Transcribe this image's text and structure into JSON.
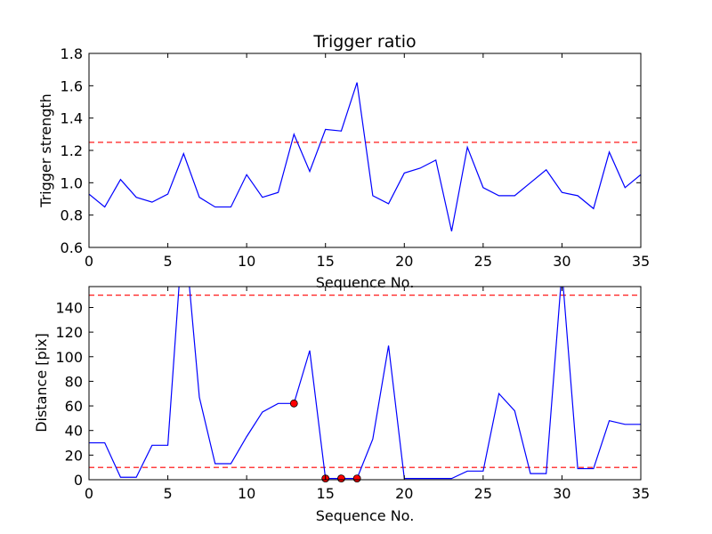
{
  "colors": {
    "line": "#0000ff",
    "threshold": "#ff0000",
    "marker_fill": "#ff0000",
    "marker_edge": "#000000",
    "axes": "#000000",
    "background": "#ffffff"
  },
  "chart_data": [
    {
      "type": "line",
      "title": "Trigger ratio",
      "xlabel": "Sequence No.",
      "ylabel": "Trigger strength",
      "xlim": [
        0,
        35
      ],
      "ylim": [
        0.6,
        1.8
      ],
      "grid": false,
      "x_ticks": [
        "0",
        "5",
        "10",
        "15",
        "20",
        "25",
        "30",
        "35"
      ],
      "y_ticks": [
        "0.6",
        "0.8",
        "1.0",
        "1.2",
        "1.4",
        "1.6",
        "1.8"
      ],
      "x_tick_values": [
        0,
        5,
        10,
        15,
        20,
        25,
        30,
        35
      ],
      "y_tick_values": [
        0.6,
        0.8,
        1.0,
        1.2,
        1.4,
        1.6,
        1.8
      ],
      "series": [
        {
          "x": [
            0,
            1,
            2,
            3,
            4,
            5,
            6,
            7,
            8,
            9,
            10,
            11,
            12,
            13,
            14,
            15,
            16,
            17,
            18,
            19,
            20,
            21,
            22,
            23,
            24,
            25,
            26,
            27,
            28,
            29,
            30,
            31,
            32,
            33,
            34,
            35
          ],
          "y": [
            0.93,
            0.85,
            1.02,
            0.91,
            0.88,
            0.93,
            1.18,
            0.91,
            0.85,
            0.85,
            1.05,
            0.91,
            0.94,
            1.3,
            1.07,
            1.33,
            1.32,
            1.62,
            0.92,
            0.87,
            1.06,
            1.09,
            1.14,
            0.7,
            1.22,
            0.97,
            0.92,
            0.92,
            1.0,
            1.08,
            0.94,
            0.92,
            0.84,
            1.19,
            0.97,
            1.05
          ]
        }
      ],
      "thresholds": [
        1.25
      ]
    },
    {
      "type": "line",
      "title": "",
      "xlabel": "Sequence No.",
      "ylabel": "Distance [pix]",
      "xlim": [
        0,
        35
      ],
      "ylim": [
        0,
        157
      ],
      "grid": false,
      "x_ticks": [
        "0",
        "5",
        "10",
        "15",
        "20",
        "25",
        "30",
        "35"
      ],
      "y_ticks": [
        "0",
        "20",
        "40",
        "60",
        "80",
        "100",
        "120",
        "140"
      ],
      "x_tick_values": [
        0,
        5,
        10,
        15,
        20,
        25,
        30,
        35
      ],
      "y_tick_values": [
        0,
        20,
        40,
        60,
        80,
        100,
        120,
        140
      ],
      "series": [
        {
          "x": [
            0,
            1,
            2,
            3,
            4,
            5,
            6,
            7,
            8,
            9,
            10,
            11,
            12,
            13,
            14,
            15,
            16,
            17,
            18,
            19,
            20,
            21,
            22,
            23,
            24,
            25,
            26,
            27,
            28,
            29,
            30,
            31,
            32,
            33,
            34,
            35
          ],
          "y": [
            30,
            30,
            2,
            2,
            28,
            28,
            210,
            67,
            13,
            13,
            35,
            55,
            62,
            62,
            105,
            1,
            1,
            1,
            33,
            109,
            1,
            1,
            1,
            1,
            7,
            7,
            70,
            56,
            5,
            5,
            170,
            9,
            9,
            48,
            45,
            45
          ]
        }
      ],
      "markers": {
        "x": [
          13,
          15,
          16,
          17
        ],
        "y": [
          62,
          1,
          1,
          1
        ]
      },
      "thresholds": [
        150,
        10
      ]
    }
  ]
}
